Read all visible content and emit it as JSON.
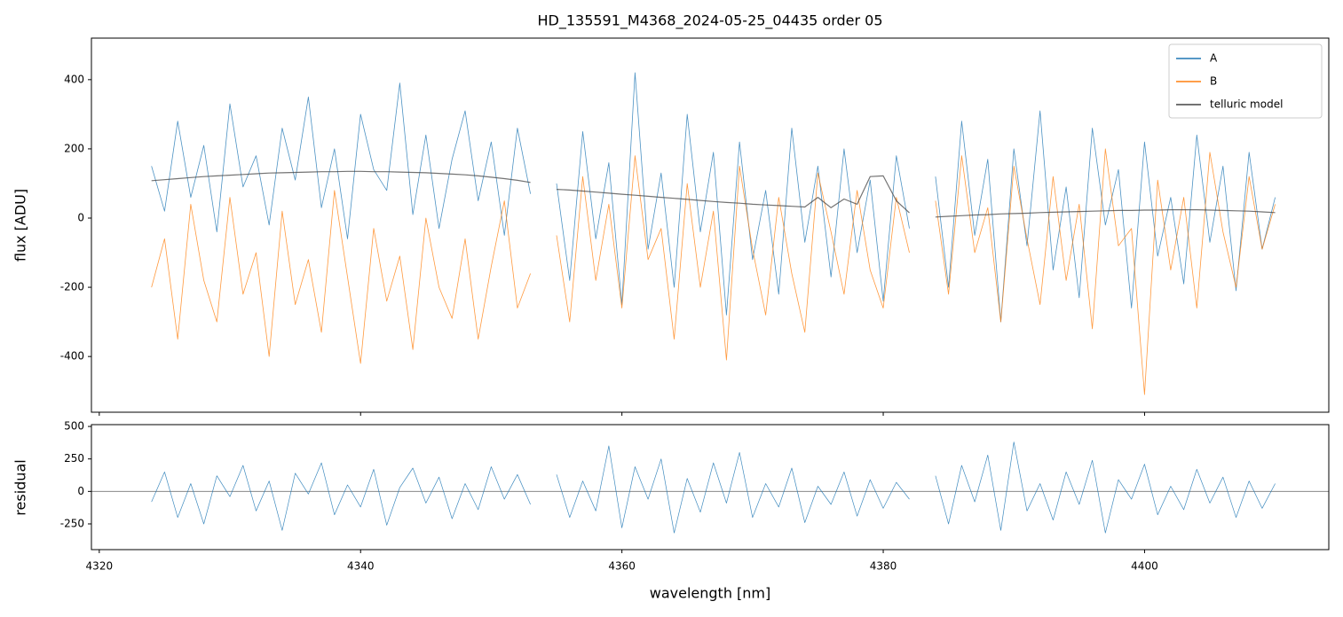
{
  "chart_data": [
    {
      "type": "line",
      "title": "HD_135591_M4368_2024-05-25_04435  order 05",
      "ylabel": "flux [ADU]",
      "x": [
        4324,
        4325,
        4326,
        4327,
        4328,
        4329,
        4330,
        4331,
        4332,
        4333,
        4334,
        4335,
        4336,
        4337,
        4338,
        4339,
        4340,
        4341,
        4342,
        4343,
        4344,
        4345,
        4346,
        4347,
        4348,
        4349,
        4350,
        4351,
        4352,
        4353,
        4354,
        4355,
        4356,
        4357,
        4358,
        4359,
        4360,
        4361,
        4362,
        4363,
        4364,
        4365,
        4366,
        4367,
        4368,
        4369,
        4370,
        4371,
        4372,
        4373,
        4374,
        4375,
        4376,
        4377,
        4378,
        4379,
        4380,
        4381,
        4382,
        4383,
        4384,
        4385,
        4386,
        4387,
        4388,
        4389,
        4390,
        4391,
        4392,
        4393,
        4394,
        4395,
        4396,
        4397,
        4398,
        4399,
        4400,
        4401,
        4402,
        4403,
        4404,
        4405,
        4406,
        4407,
        4408,
        4409,
        4410
      ],
      "series": [
        {
          "name": "A",
          "color": "#1f77b4",
          "values": [
            150,
            20,
            280,
            60,
            210,
            -40,
            330,
            90,
            180,
            -20,
            260,
            110,
            350,
            30,
            200,
            -60,
            300,
            140,
            80,
            390,
            10,
            240,
            -30,
            170,
            310,
            50,
            220,
            -50,
            260,
            70,
            null,
            100,
            -180,
            250,
            -60,
            160,
            -250,
            420,
            -90,
            130,
            -200,
            300,
            -40,
            190,
            -280,
            220,
            -120,
            80,
            -220,
            260,
            -70,
            150,
            -170,
            200,
            -100,
            110,
            -240,
            180,
            -30,
            null,
            120,
            -200,
            280,
            -50,
            170,
            -300,
            200,
            -80,
            310,
            -150,
            90,
            -230,
            260,
            -20,
            140,
            -260,
            220,
            -110,
            60,
            -190,
            240,
            -70,
            150,
            -210,
            190,
            -90,
            60
          ]
        },
        {
          "name": "B",
          "color": "#ff7f0e",
          "values": [
            -200,
            -60,
            -350,
            40,
            -180,
            -300,
            60,
            -220,
            -100,
            -400,
            20,
            -250,
            -120,
            -330,
            80,
            -170,
            -420,
            -30,
            -240,
            -110,
            -380,
            0,
            -200,
            -290,
            -60,
            -350,
            -140,
            50,
            -260,
            -160,
            null,
            -50,
            -300,
            120,
            -180,
            40,
            -260,
            180,
            -120,
            -30,
            -350,
            100,
            -200,
            20,
            -410,
            150,
            -90,
            -280,
            60,
            -160,
            -330,
            130,
            -40,
            -220,
            80,
            -150,
            -260,
            60,
            -100,
            null,
            50,
            -220,
            180,
            -100,
            30,
            -300,
            150,
            -60,
            -250,
            120,
            -180,
            40,
            -320,
            200,
            -80,
            -30,
            -510,
            110,
            -150,
            60,
            -260,
            190,
            -40,
            -200,
            120,
            -90,
            40
          ]
        },
        {
          "name": "telluric model",
          "color": "#444444",
          "values": [
            108,
            111,
            114,
            117,
            120,
            122,
            124,
            126,
            128,
            130,
            131,
            132,
            133,
            134,
            134,
            135,
            135,
            134,
            134,
            133,
            132,
            131,
            129,
            127,
            125,
            122,
            118,
            114,
            109,
            103,
            null,
            83,
            81,
            78,
            75,
            72,
            69,
            66,
            63,
            60,
            57,
            54,
            51,
            48,
            45,
            43,
            40,
            38,
            36,
            34,
            32,
            60,
            30,
            55,
            40,
            120,
            122,
            50,
            15,
            null,
            3,
            5,
            7,
            9,
            10,
            12,
            13,
            14,
            16,
            17,
            18,
            19,
            20,
            21,
            22,
            22,
            23,
            23,
            24,
            24,
            24,
            23,
            22,
            21,
            20,
            18,
            16
          ]
        }
      ],
      "xlim": [
        4319.4,
        4414.1
      ],
      "ylim": [
        -561,
        520
      ],
      "yticks": [
        -400,
        -200,
        0,
        200,
        400
      ],
      "legend": "upper right"
    },
    {
      "type": "line",
      "ylabel": "residual",
      "xlabel": "wavelength [nm]",
      "color": "#1f77b4",
      "x": [
        4324,
        4325,
        4326,
        4327,
        4328,
        4329,
        4330,
        4331,
        4332,
        4333,
        4334,
        4335,
        4336,
        4337,
        4338,
        4339,
        4340,
        4341,
        4342,
        4343,
        4344,
        4345,
        4346,
        4347,
        4348,
        4349,
        4350,
        4351,
        4352,
        4353,
        4354,
        4355,
        4356,
        4357,
        4358,
        4359,
        4360,
        4361,
        4362,
        4363,
        4364,
        4365,
        4366,
        4367,
        4368,
        4369,
        4370,
        4371,
        4372,
        4373,
        4374,
        4375,
        4376,
        4377,
        4378,
        4379,
        4380,
        4381,
        4382,
        4383,
        4384,
        4385,
        4386,
        4387,
        4388,
        4389,
        4390,
        4391,
        4392,
        4393,
        4394,
        4395,
        4396,
        4397,
        4398,
        4399,
        4400,
        4401,
        4402,
        4403,
        4404,
        4405,
        4406,
        4407,
        4408,
        4409,
        4410
      ],
      "values": [
        -80,
        150,
        -200,
        60,
        -250,
        120,
        -40,
        200,
        -150,
        80,
        -300,
        140,
        -20,
        220,
        -180,
        50,
        -120,
        170,
        -260,
        30,
        180,
        -90,
        110,
        -210,
        60,
        -140,
        190,
        -60,
        130,
        -100,
        null,
        130,
        -200,
        80,
        -150,
        350,
        -280,
        190,
        -60,
        250,
        -320,
        100,
        -160,
        220,
        -90,
        300,
        -200,
        60,
        -120,
        180,
        -240,
        40,
        -100,
        150,
        -190,
        90,
        -130,
        70,
        -60,
        null,
        120,
        -250,
        200,
        -80,
        280,
        -300,
        380,
        -150,
        60,
        -220,
        150,
        -100,
        240,
        -320,
        90,
        -60,
        210,
        -180,
        40,
        -140,
        170,
        -90,
        110,
        -200,
        80,
        -130,
        60
      ],
      "hline": 0,
      "xlim": [
        4319.4,
        4414.1
      ],
      "ylim": [
        -448,
        514
      ],
      "yticks": [
        -250,
        0,
        250,
        500
      ],
      "xticks": [
        4320,
        4340,
        4360,
        4380,
        4400
      ]
    }
  ]
}
